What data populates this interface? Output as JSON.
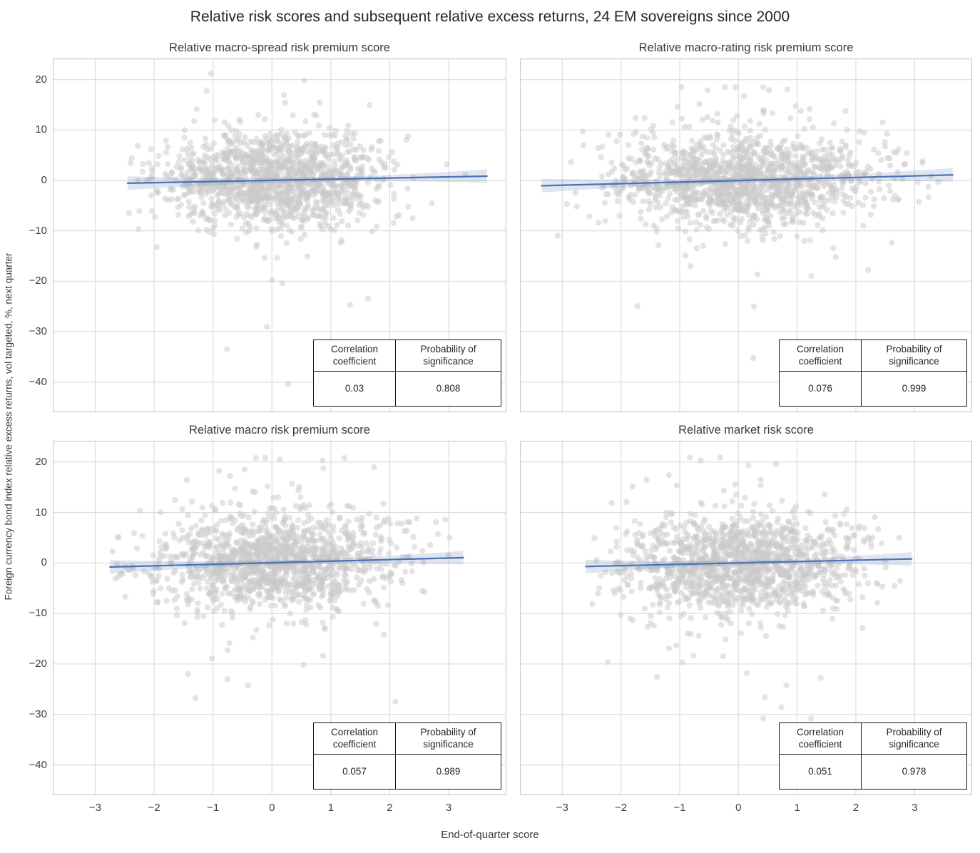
{
  "figure": {
    "title": "Relative risk scores and subsequent relative excess returns, 24 EM sovereigns since 2000",
    "xlabel": "End-of-quarter score",
    "ylabel": "Foreign currency bond index relative excess returns, vol targeted, %, next quarter"
  },
  "table": {
    "correlation_header": "Correlation coefficient",
    "significance_header": "Probability of significance"
  },
  "style": {
    "accent_line": "#4c72b0",
    "band_fill": "rgba(76,114,176,0.18)",
    "scatter_fill": "#c9c9c9",
    "scatter_opacity": 0.5,
    "grid_color": "#dcdcdc",
    "panel_border": "#cccccc"
  },
  "axes": {
    "xlim": [
      -3.72,
      3.98
    ],
    "ylim": [
      -46,
      24.2
    ],
    "xticks": [
      -3,
      -2,
      -1,
      0,
      1,
      2,
      3
    ],
    "yticks": [
      20,
      10,
      0,
      -10,
      -20,
      -30,
      -40
    ]
  },
  "chart_data": [
    {
      "type": "scatter",
      "title": "Relative macro-spread risk premium score",
      "correlation_coefficient": 0.03,
      "probability_of_significance": 0.808,
      "regression_line": {
        "x0": -2.45,
        "y0": -0.55,
        "x1": 3.65,
        "y1": 0.85
      },
      "band_halfwidth": {
        "mid": 0.45,
        "end": 1.35
      },
      "points": {
        "n": 1400,
        "seed": 101,
        "x_mean": 0.05,
        "x_std": 0.95,
        "x_min": -2.45,
        "x_max": 3.65,
        "y_std": 4.6,
        "y_min": -41.5,
        "y_max": 21.2
      }
    },
    {
      "type": "scatter",
      "title": "Relative macro-rating risk premium score",
      "correlation_coefficient": 0.076,
      "probability_of_significance": 0.999,
      "regression_line": {
        "x0": -3.35,
        "y0": -1.05,
        "x1": 3.65,
        "y1": 1.1
      },
      "band_halfwidth": {
        "mid": 0.45,
        "end": 1.35
      },
      "points": {
        "n": 1450,
        "seed": 202,
        "x_mean": 0.1,
        "x_std": 1.15,
        "x_min": -3.35,
        "x_max": 3.65,
        "y_std": 4.6,
        "y_min": -41.0,
        "y_max": 18.5
      }
    },
    {
      "type": "scatter",
      "title": "Relative macro risk premium score",
      "correlation_coefficient": 0.057,
      "probability_of_significance": 0.989,
      "regression_line": {
        "x0": -2.75,
        "y0": -0.8,
        "x1": 3.25,
        "y1": 1.05
      },
      "band_halfwidth": {
        "mid": 0.45,
        "end": 1.35
      },
      "points": {
        "n": 1400,
        "seed": 303,
        "x_mean": 0.0,
        "x_std": 1.0,
        "x_min": -2.75,
        "x_max": 3.25,
        "y_std": 4.7,
        "y_min": -41.5,
        "y_max": 20.8
      }
    },
    {
      "type": "scatter",
      "title": "Relative market risk score",
      "correlation_coefficient": 0.051,
      "probability_of_significance": 0.978,
      "regression_line": {
        "x0": -2.6,
        "y0": -0.7,
        "x1": 2.95,
        "y1": 0.8
      },
      "band_halfwidth": {
        "mid": 0.45,
        "end": 1.35
      },
      "points": {
        "n": 1400,
        "seed": 404,
        "x_mean": 0.0,
        "x_std": 1.0,
        "x_min": -2.6,
        "x_max": 2.95,
        "y_std": 4.8,
        "y_min": -30.8,
        "y_max": 20.9
      }
    }
  ]
}
